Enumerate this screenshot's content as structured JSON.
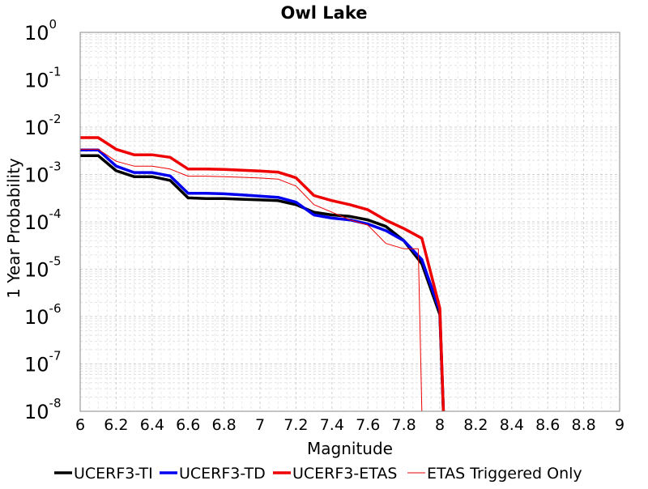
{
  "chart_data": {
    "type": "line",
    "title": "Owl Lake",
    "xlabel": "Magnitude",
    "ylabel": "1 Year Probability",
    "xlim": [
      6,
      9
    ],
    "ylim_log10": [
      -8,
      0
    ],
    "yscale": "log",
    "grid": true,
    "legend_position": "bottom",
    "x_ticks": [
      "6",
      "6.2",
      "6.4",
      "6.6",
      "6.8",
      "7",
      "7.2",
      "7.4",
      "7.6",
      "7.8",
      "8",
      "8.2",
      "8.4",
      "8.6",
      "8.8",
      "9"
    ],
    "y_ticks": [
      {
        "base": "10",
        "exp": "0"
      },
      {
        "base": "10",
        "exp": "-1"
      },
      {
        "base": "10",
        "exp": "-2"
      },
      {
        "base": "10",
        "exp": "-3"
      },
      {
        "base": "10",
        "exp": "-4"
      },
      {
        "base": "10",
        "exp": "-5"
      },
      {
        "base": "10",
        "exp": "-6"
      },
      {
        "base": "10",
        "exp": "-7"
      },
      {
        "base": "10",
        "exp": "-8"
      }
    ],
    "series": [
      {
        "name": "UCERF3-TI",
        "color": "#000000",
        "style": "thick",
        "x": [
          6.0,
          6.1,
          6.2,
          6.3,
          6.4,
          6.5,
          6.6,
          6.7,
          6.8,
          6.9,
          7.0,
          7.1,
          7.2,
          7.3,
          7.4,
          7.5,
          7.6,
          7.7,
          7.8,
          7.9,
          8.0,
          8.02
        ],
        "y": [
          0.0025,
          0.0025,
          0.0012,
          0.0009,
          0.0009,
          0.00075,
          0.00032,
          0.00031,
          0.00031,
          0.0003,
          0.00029,
          0.00028,
          0.00023,
          0.00016,
          0.00014,
          0.00013,
          0.00011,
          8e-05,
          4e-05,
          1.3e-05,
          1.1e-06,
          1e-08
        ]
      },
      {
        "name": "UCERF3-TD",
        "color": "#0000ee",
        "style": "thick",
        "x": [
          6.0,
          6.1,
          6.2,
          6.3,
          6.4,
          6.5,
          6.6,
          6.7,
          6.8,
          6.9,
          7.0,
          7.1,
          7.2,
          7.3,
          7.4,
          7.5,
          7.6,
          7.7,
          7.8,
          7.9,
          8.0,
          8.02
        ],
        "y": [
          0.0033,
          0.0033,
          0.0015,
          0.0011,
          0.0011,
          0.00093,
          0.0004,
          0.0004,
          0.00039,
          0.00037,
          0.00035,
          0.00033,
          0.00026,
          0.00014,
          0.00012,
          0.00011,
          9e-05,
          6.5e-05,
          4e-05,
          1.6e-05,
          1.3e-06,
          1e-08
        ]
      },
      {
        "name": "UCERF3-ETAS",
        "color": "#ee0000",
        "style": "thick",
        "x": [
          6.0,
          6.1,
          6.2,
          6.3,
          6.4,
          6.5,
          6.6,
          6.7,
          6.8,
          6.9,
          7.0,
          7.1,
          7.2,
          7.3,
          7.4,
          7.5,
          7.6,
          7.7,
          7.8,
          7.9,
          8.0,
          8.02
        ],
        "y": [
          0.006,
          0.006,
          0.0034,
          0.0026,
          0.0026,
          0.0023,
          0.0013,
          0.0013,
          0.00128,
          0.00123,
          0.00118,
          0.00112,
          0.00085,
          0.00036,
          0.00028,
          0.00023,
          0.00018,
          0.000108,
          7.2e-05,
          4.5e-05,
          1.5e-06,
          1e-08
        ]
      },
      {
        "name": "ETAS Triggered Only",
        "color": "#ee0000",
        "style": "thin",
        "x": [
          6.0,
          6.1,
          6.2,
          6.3,
          6.4,
          6.5,
          6.6,
          6.7,
          6.8,
          6.9,
          7.0,
          7.1,
          7.2,
          7.3,
          7.4,
          7.5,
          7.6,
          7.7,
          7.8,
          7.88,
          7.9
        ],
        "y": [
          0.0034,
          0.0034,
          0.0019,
          0.0015,
          0.0015,
          0.0013,
          0.00092,
          0.00092,
          0.0009,
          0.00087,
          0.00084,
          0.0008,
          0.00057,
          0.00023,
          0.00016,
          0.00011,
          8.5e-05,
          3.5e-05,
          2.7e-05,
          2.7e-05,
          1e-08
        ]
      }
    ]
  }
}
